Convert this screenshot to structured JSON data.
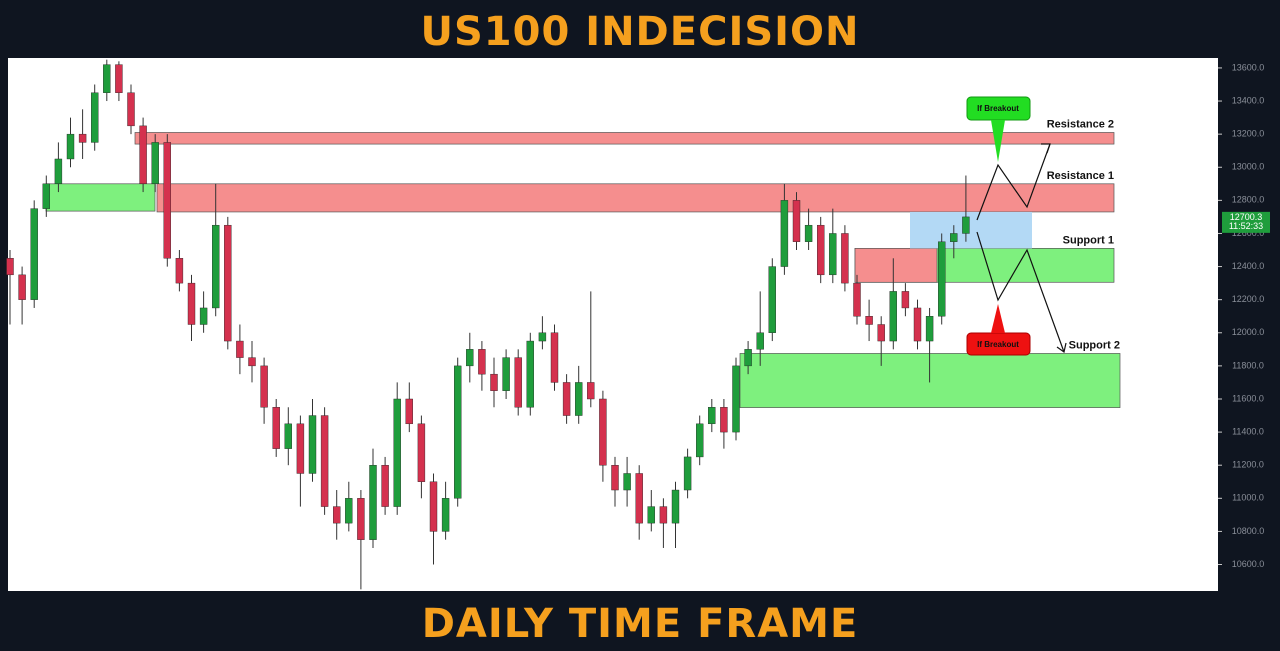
{
  "chart_data": {
    "type": "candlestick",
    "title": "US100 INDECISION",
    "footer": "DAILY TIME FRAME",
    "ylim": [
      10440,
      13660
    ],
    "yticks": [
      {
        "value": 10600,
        "label": "10600.0"
      },
      {
        "value": 10800,
        "label": "10800.0"
      },
      {
        "value": 11000,
        "label": "11000.0"
      },
      {
        "value": 11200,
        "label": "11200.0"
      },
      {
        "value": 11400,
        "label": "11400.0"
      },
      {
        "value": 11600,
        "label": "11600.0"
      },
      {
        "value": 11800,
        "label": "11800.0"
      },
      {
        "value": 12000,
        "label": "12000.0"
      },
      {
        "value": 12200,
        "label": "12200.0"
      },
      {
        "value": 12400,
        "label": "12400.0"
      },
      {
        "value": 12600,
        "label": "12600.0"
      },
      {
        "value": 12800,
        "label": "12800.0"
      },
      {
        "value": 13000,
        "label": "13000.0"
      },
      {
        "value": 13200,
        "label": "13200.0"
      },
      {
        "value": 13400,
        "label": "13400.0"
      },
      {
        "value": 13600,
        "label": "13600.0"
      }
    ],
    "up_color": "#1f9d3c",
    "down_color": "#d4314e",
    "current_price": 12700.3,
    "timer": "11:52:33",
    "candles": [
      [
        12450,
        12500,
        12050,
        12350
      ],
      [
        12350,
        12400,
        12050,
        12200
      ],
      [
        12200,
        12800,
        12150,
        12750
      ],
      [
        12750,
        12950,
        12700,
        12900
      ],
      [
        12900,
        13150,
        12850,
        13050
      ],
      [
        13050,
        13300,
        13000,
        13200
      ],
      [
        13200,
        13350,
        13050,
        13150
      ],
      [
        13150,
        13500,
        13100,
        13450
      ],
      [
        13450,
        13650,
        13400,
        13620
      ],
      [
        13620,
        13640,
        13400,
        13450
      ],
      [
        13450,
        13500,
        13200,
        13250
      ],
      [
        13250,
        13300,
        12850,
        12900
      ],
      [
        12900,
        13200,
        12850,
        13150
      ],
      [
        13150,
        13200,
        12400,
        12450
      ],
      [
        12450,
        12500,
        12250,
        12300
      ],
      [
        12300,
        12350,
        11950,
        12050
      ],
      [
        12050,
        12250,
        12000,
        12150
      ],
      [
        12150,
        12900,
        12100,
        12650
      ],
      [
        12650,
        12700,
        11900,
        11950
      ],
      [
        11950,
        12050,
        11750,
        11850
      ],
      [
        11850,
        11950,
        11700,
        11800
      ],
      [
        11800,
        11850,
        11450,
        11550
      ],
      [
        11550,
        11600,
        11250,
        11300
      ],
      [
        11300,
        11550,
        11200,
        11450
      ],
      [
        11450,
        11500,
        10950,
        11150
      ],
      [
        11150,
        11600,
        11100,
        11500
      ],
      [
        11500,
        11550,
        10900,
        10950
      ],
      [
        10950,
        11050,
        10750,
        10850
      ],
      [
        10850,
        11100,
        10800,
        11000
      ],
      [
        11000,
        11050,
        10450,
        10750
      ],
      [
        10750,
        11300,
        10700,
        11200
      ],
      [
        11200,
        11250,
        10900,
        10950
      ],
      [
        10950,
        11700,
        10900,
        11600
      ],
      [
        11600,
        11700,
        11400,
        11450
      ],
      [
        11450,
        11500,
        11000,
        11100
      ],
      [
        11100,
        11150,
        10600,
        10800
      ],
      [
        10800,
        11100,
        10750,
        11000
      ],
      [
        11000,
        11850,
        10950,
        11800
      ],
      [
        11800,
        12000,
        11700,
        11900
      ],
      [
        11900,
        11950,
        11650,
        11750
      ],
      [
        11750,
        11850,
        11550,
        11650
      ],
      [
        11650,
        11900,
        11600,
        11850
      ],
      [
        11850,
        11900,
        11500,
        11550
      ],
      [
        11550,
        12000,
        11500,
        11950
      ],
      [
        11950,
        12100,
        11900,
        12000
      ],
      [
        12000,
        12050,
        11650,
        11700
      ],
      [
        11700,
        11750,
        11450,
        11500
      ],
      [
        11500,
        11800,
        11450,
        11700
      ],
      [
        11700,
        12250,
        11550,
        11600
      ],
      [
        11600,
        11650,
        11100,
        11200
      ],
      [
        11200,
        11250,
        10950,
        11050
      ],
      [
        11050,
        11250,
        10950,
        11150
      ],
      [
        11150,
        11200,
        10750,
        10850
      ],
      [
        10850,
        11050,
        10800,
        10950
      ],
      [
        10950,
        11000,
        10700,
        10850
      ],
      [
        10850,
        11100,
        10700,
        11050
      ],
      [
        11050,
        11300,
        11000,
        11250
      ],
      [
        11250,
        11500,
        11200,
        11450
      ],
      [
        11450,
        11600,
        11400,
        11550
      ],
      [
        11550,
        11600,
        11300,
        11400
      ],
      [
        11400,
        11850,
        11350,
        11800
      ],
      [
        11800,
        11950,
        11750,
        11900
      ],
      [
        11900,
        12250,
        11800,
        12000
      ],
      [
        12000,
        12450,
        11950,
        12400
      ],
      [
        12400,
        12900,
        12350,
        12800
      ],
      [
        12800,
        12850,
        12500,
        12550
      ],
      [
        12550,
        12750,
        12500,
        12650
      ],
      [
        12650,
        12700,
        12300,
        12350
      ],
      [
        12350,
        12750,
        12300,
        12600
      ],
      [
        12600,
        12650,
        12250,
        12300
      ],
      [
        12300,
        12350,
        12050,
        12100
      ],
      [
        12100,
        12200,
        11950,
        12050
      ],
      [
        12050,
        12100,
        11800,
        11950
      ],
      [
        11950,
        12450,
        11900,
        12250
      ],
      [
        12250,
        12300,
        12100,
        12150
      ],
      [
        12150,
        12200,
        11900,
        11950
      ],
      [
        11950,
        12150,
        11700,
        12100
      ],
      [
        12100,
        12600,
        12050,
        12550
      ],
      [
        12550,
        12650,
        12450,
        12600
      ],
      [
        12600,
        12950,
        12550,
        12700
      ]
    ],
    "zones": [
      {
        "label": "Resistance 2",
        "range": [
          13140,
          13210
        ],
        "color": "#f58e8e"
      },
      {
        "label": "Resistance 1",
        "range": [
          12730,
          12900
        ],
        "color": "#f58e8e"
      },
      {
        "range": [
          12735,
          12900
        ],
        "color": "#7ef07e"
      },
      {
        "label": "Support 1",
        "range": [
          12305,
          12510
        ],
        "color": "#7ef07e"
      },
      {
        "range": [
          12305,
          12510
        ],
        "color": "#f58e8e"
      },
      {
        "range": [
          12510,
          12730
        ],
        "color": "#b3d9f5"
      },
      {
        "label": "Support 2",
        "range": [
          11548,
          11875
        ],
        "color": "#7ef07e"
      }
    ],
    "callouts": [
      "If Breakout",
      "If Breakout"
    ]
  }
}
